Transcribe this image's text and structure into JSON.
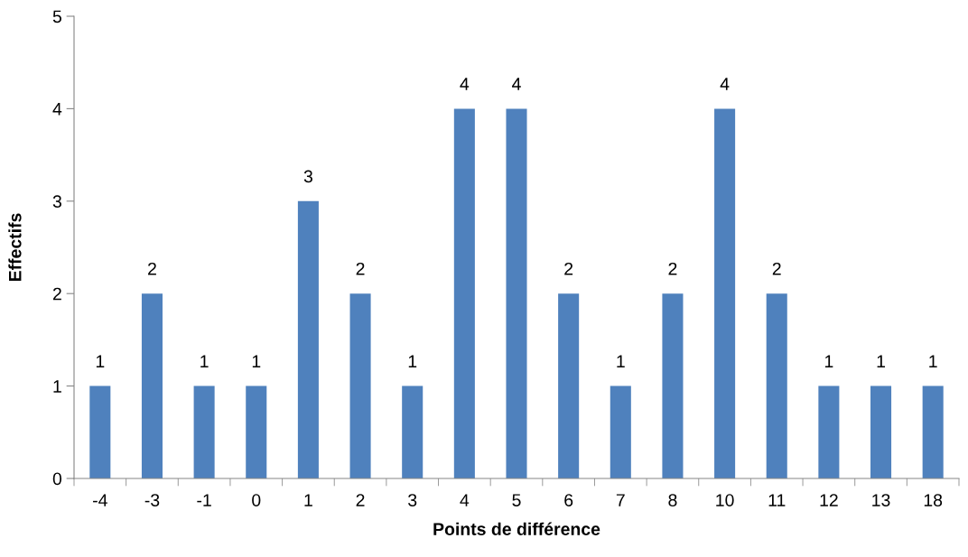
{
  "chart_data": {
    "type": "bar",
    "xlabel": "Points de différence",
    "ylabel": "Effectifs",
    "categories": [
      "-4",
      "-3",
      "-1",
      "0",
      "1",
      "2",
      "3",
      "4",
      "5",
      "6",
      "7",
      "8",
      "10",
      "11",
      "12",
      "13",
      "18"
    ],
    "values": [
      1,
      2,
      1,
      1,
      3,
      2,
      1,
      4,
      4,
      2,
      1,
      2,
      4,
      2,
      1,
      1,
      1
    ],
    "color": "#4f81bd",
    "ylim": [
      0,
      5
    ],
    "yticks": [
      0,
      1,
      2,
      3,
      4,
      5
    ],
    "grid": false,
    "data_labels": true
  }
}
